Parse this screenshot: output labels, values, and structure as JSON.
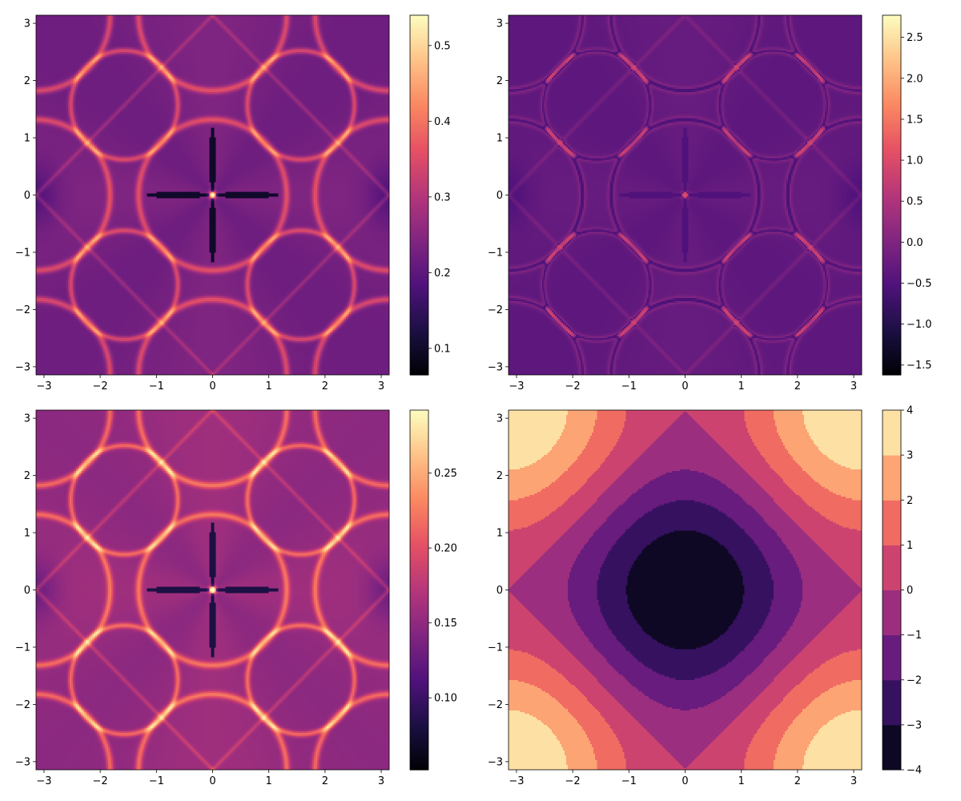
{
  "colormap": "magma",
  "colormap_stops": [
    "#000004",
    "#1c1044",
    "#4f127b",
    "#812581",
    "#b5367a",
    "#e55064",
    "#fb8761",
    "#fec287",
    "#fcfdbf"
  ],
  "chart_data": [
    {
      "type": "heatmap",
      "position": "top-left",
      "title": "",
      "xlabel": "",
      "ylabel": "",
      "xlim": [
        -3.14159,
        3.14159
      ],
      "ylim": [
        -3.14159,
        3.14159
      ],
      "x_ticks": [
        -3,
        -2,
        -1,
        0,
        1,
        2,
        3
      ],
      "y_ticks": [
        -3,
        -2,
        -1,
        0,
        1,
        2,
        3
      ],
      "x_tick_labels": [
        "−3",
        "−2",
        "−1",
        "0",
        "1",
        "2",
        "3"
      ],
      "y_tick_labels": [
        "−3",
        "−2",
        "−1",
        "0",
        "1",
        "2",
        "3"
      ],
      "colorbar": {
        "range": [
          0.065,
          0.54
        ],
        "ticks": [
          0.1,
          0.2,
          0.3,
          0.4,
          0.5
        ],
        "tick_labels": [
          "0.1",
          "0.2",
          "0.3",
          "0.4",
          "0.5"
        ]
      },
      "pattern": "caustic"
    },
    {
      "type": "heatmap",
      "position": "top-right",
      "title": "",
      "xlabel": "",
      "ylabel": "",
      "xlim": [
        -3.14159,
        3.14159
      ],
      "ylim": [
        -3.14159,
        3.14159
      ],
      "x_ticks": [
        -3,
        -2,
        -1,
        0,
        1,
        2,
        3
      ],
      "y_ticks": [
        -3,
        -2,
        -1,
        0,
        1,
        2,
        3
      ],
      "x_tick_labels": [
        "−3",
        "−2",
        "−1",
        "0",
        "1",
        "2",
        "3"
      ],
      "y_tick_labels": [
        "−3",
        "−2",
        "−1",
        "0",
        "1",
        "2",
        "3"
      ],
      "colorbar": {
        "range": [
          -1.62,
          2.77
        ],
        "ticks": [
          -1.5,
          -1.0,
          -0.5,
          0.0,
          0.5,
          1.0,
          1.5,
          2.0,
          2.5
        ],
        "tick_labels": [
          "−1.5",
          "−1.0",
          "−0.5",
          "0.0",
          "0.5",
          "1.0",
          "1.5",
          "2.0",
          "2.5"
        ]
      },
      "pattern": "log-caustic"
    },
    {
      "type": "heatmap",
      "position": "bottom-left",
      "title": "",
      "xlabel": "",
      "ylabel": "",
      "xlim": [
        -3.14159,
        3.14159
      ],
      "ylim": [
        -3.14159,
        3.14159
      ],
      "x_ticks": [
        -3,
        -2,
        -1,
        0,
        1,
        2,
        3
      ],
      "y_ticks": [
        -3,
        -2,
        -1,
        0,
        1,
        2,
        3
      ],
      "x_tick_labels": [
        "−3",
        "−2",
        "−1",
        "0",
        "1",
        "2",
        "3"
      ],
      "y_tick_labels": [
        "−3",
        "−2",
        "−1",
        "0",
        "1",
        "2",
        "3"
      ],
      "colorbar": {
        "range": [
          0.052,
          0.292
        ],
        "ticks": [
          0.1,
          0.15,
          0.2,
          0.25
        ],
        "tick_labels": [
          "0.10",
          "0.15",
          "0.20",
          "0.25"
        ]
      },
      "pattern": "caustic"
    },
    {
      "type": "heatmap",
      "subtype": "filled-contour",
      "position": "bottom-right",
      "title": "",
      "xlabel": "",
      "ylabel": "",
      "function": "-2*(cos(x)+cos(y))",
      "levels": [
        -4,
        -3,
        -2,
        -1,
        0,
        1,
        2,
        3,
        4
      ],
      "xlim": [
        -3.14159,
        3.14159
      ],
      "ylim": [
        -3.14159,
        3.14159
      ],
      "x_ticks": [
        -3,
        -2,
        -1,
        0,
        1,
        2,
        3
      ],
      "y_ticks": [
        -3,
        -2,
        -1,
        0,
        1,
        2,
        3
      ],
      "x_tick_labels": [
        "−3",
        "−2",
        "−1",
        "0",
        "1",
        "2",
        "3"
      ],
      "y_tick_labels": [
        "−3",
        "−2",
        "−1",
        "0",
        "1",
        "2",
        "3"
      ],
      "colorbar": {
        "range": [
          -4,
          4
        ],
        "ticks": [
          -4,
          -3,
          -2,
          -1,
          0,
          1,
          2,
          3,
          4
        ],
        "tick_labels": [
          "−4",
          "−3",
          "−2",
          "−1",
          "0",
          "1",
          "2",
          "3",
          "4"
        ]
      }
    }
  ]
}
